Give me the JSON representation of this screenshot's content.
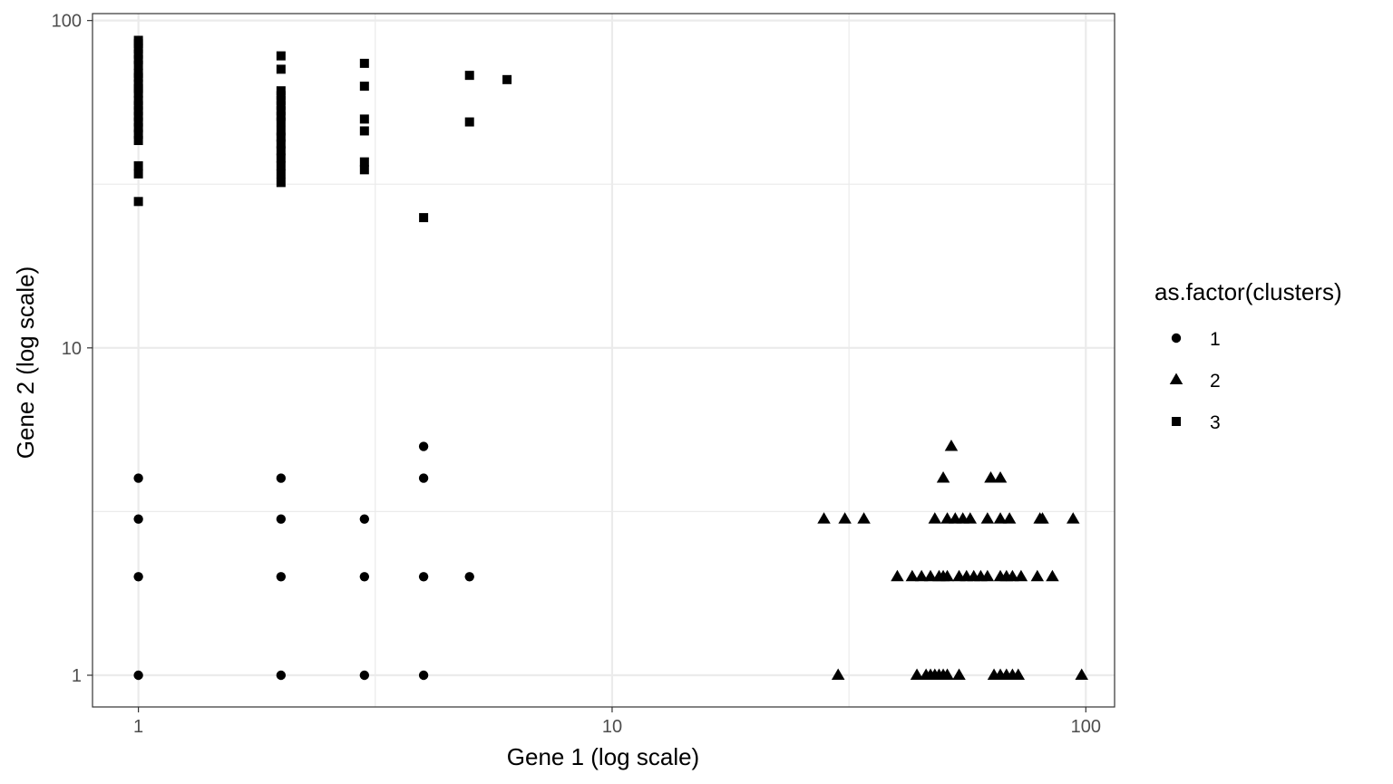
{
  "chart_data": {
    "type": "scatter",
    "title": "",
    "xlabel": "Gene 1 (log scale)",
    "ylabel": "Gene 2 (log scale)",
    "x_scale": "log10",
    "y_scale": "log10",
    "xlim": [
      0.8,
      115
    ],
    "ylim": [
      0.8,
      105
    ],
    "x_ticks": [
      {
        "value": 1,
        "label": "1"
      },
      {
        "value": 10,
        "label": "10"
      },
      {
        "value": 100,
        "label": "100"
      }
    ],
    "y_ticks": [
      {
        "value": 1,
        "label": "1"
      },
      {
        "value": 10,
        "label": "10"
      },
      {
        "value": 100,
        "label": "100"
      }
    ],
    "grid": true,
    "legend": {
      "title": "as.factor(clusters)",
      "position": "right"
    },
    "series": [
      {
        "name": "1",
        "marker": "circle",
        "points": [
          [
            1,
            1
          ],
          [
            1,
            2
          ],
          [
            1,
            3
          ],
          [
            1,
            4
          ],
          [
            2,
            1
          ],
          [
            2,
            2
          ],
          [
            2,
            3
          ],
          [
            2,
            4
          ],
          [
            3,
            1
          ],
          [
            3,
            2
          ],
          [
            3,
            3
          ],
          [
            4,
            1
          ],
          [
            4,
            2
          ],
          [
            4,
            4
          ],
          [
            4,
            5
          ],
          [
            5,
            2
          ]
        ]
      },
      {
        "name": "2",
        "marker": "triangle",
        "points": [
          [
            30,
            1
          ],
          [
            44,
            1
          ],
          [
            46,
            1
          ],
          [
            47,
            1
          ],
          [
            48,
            1
          ],
          [
            49,
            1
          ],
          [
            50,
            1
          ],
          [
            51,
            1
          ],
          [
            54,
            1
          ],
          [
            64,
            1
          ],
          [
            66,
            1
          ],
          [
            68,
            1
          ],
          [
            70,
            1
          ],
          [
            72,
            1
          ],
          [
            98,
            1
          ],
          [
            40,
            2
          ],
          [
            43,
            2
          ],
          [
            45,
            2
          ],
          [
            47,
            2
          ],
          [
            49,
            2
          ],
          [
            50,
            2
          ],
          [
            51,
            2
          ],
          [
            54,
            2
          ],
          [
            56,
            2
          ],
          [
            58,
            2
          ],
          [
            60,
            2
          ],
          [
            62,
            2
          ],
          [
            66,
            2
          ],
          [
            68,
            2
          ],
          [
            70,
            2
          ],
          [
            73,
            2
          ],
          [
            79,
            2
          ],
          [
            85,
            2
          ],
          [
            28,
            3
          ],
          [
            31,
            3
          ],
          [
            34,
            3
          ],
          [
            48,
            3
          ],
          [
            51,
            3
          ],
          [
            53,
            3
          ],
          [
            55,
            3
          ],
          [
            57,
            3
          ],
          [
            62,
            3
          ],
          [
            66,
            3
          ],
          [
            69,
            3
          ],
          [
            80,
            3
          ],
          [
            81,
            3
          ],
          [
            94,
            3
          ],
          [
            50,
            4
          ],
          [
            63,
            4
          ],
          [
            66,
            4
          ],
          [
            52,
            5
          ]
        ]
      },
      {
        "name": "3",
        "marker": "square",
        "points": [
          [
            1,
            28
          ],
          [
            1,
            34
          ],
          [
            1,
            36
          ],
          [
            1,
            43
          ],
          [
            1,
            45
          ],
          [
            1,
            47
          ],
          [
            1,
            49
          ],
          [
            1,
            51
          ],
          [
            1,
            53
          ],
          [
            1,
            55
          ],
          [
            1,
            57
          ],
          [
            1,
            60
          ],
          [
            1,
            62
          ],
          [
            1,
            64
          ],
          [
            1,
            67
          ],
          [
            1,
            69
          ],
          [
            1,
            73
          ],
          [
            1,
            76
          ],
          [
            1,
            79
          ],
          [
            1,
            82
          ],
          [
            1,
            85
          ],
          [
            1,
            87
          ],
          [
            2,
            32
          ],
          [
            2,
            34
          ],
          [
            2,
            36
          ],
          [
            2,
            38
          ],
          [
            2,
            40
          ],
          [
            2,
            42
          ],
          [
            2,
            44
          ],
          [
            2,
            46
          ],
          [
            2,
            49
          ],
          [
            2,
            51
          ],
          [
            2,
            53
          ],
          [
            2,
            55
          ],
          [
            2,
            57
          ],
          [
            2,
            59
          ],
          [
            2,
            61
          ],
          [
            2,
            71
          ],
          [
            2,
            78
          ],
          [
            3,
            35
          ],
          [
            3,
            37
          ],
          [
            3,
            46
          ],
          [
            3,
            50
          ],
          [
            3,
            63
          ],
          [
            3,
            74
          ],
          [
            4,
            25
          ],
          [
            5,
            49
          ],
          [
            5,
            68
          ],
          [
            6,
            66
          ]
        ]
      }
    ]
  }
}
